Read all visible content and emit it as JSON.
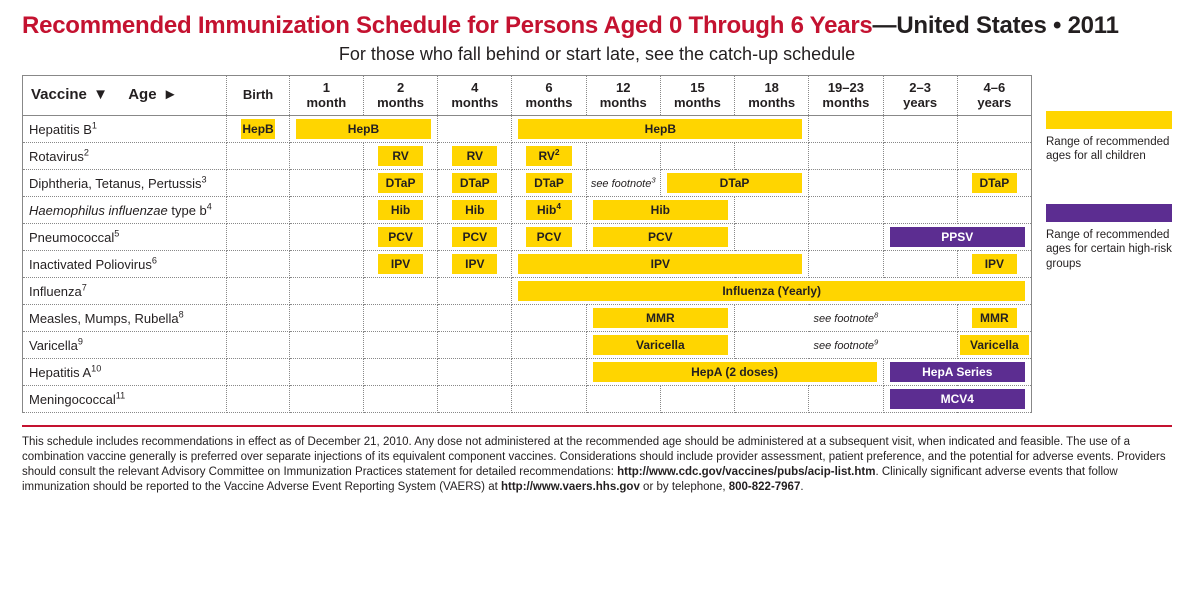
{
  "title": {
    "red": "Recommended Immunization Schedule for Persons Aged 0 Through 6 Years",
    "dash": "—",
    "black": "United States • 2011"
  },
  "subtitle": "For those who fall behind or start late, see the catch-up schedule",
  "tableHeader": {
    "vaccine": "Vaccine",
    "age": "Age",
    "arrowDown": "▼",
    "arrowRight": "►"
  },
  "ages": [
    "Birth",
    "1 month",
    "2 months",
    "4 months",
    "6 months",
    "12 months",
    "15 months",
    "18 months",
    "19–23 months",
    "2–3 years",
    "4–6 years"
  ],
  "vaccines": [
    {
      "name": "Hepatitis B",
      "sup": "1"
    },
    {
      "name": "Rotavirus",
      "sup": "2"
    },
    {
      "name": "Diphtheria, Tetanus, Pertussis",
      "sup": "3"
    },
    {
      "name": "Haemophilus influenzae",
      "suffix": " type b",
      "sup": "4",
      "italic": true
    },
    {
      "name": "Pneumococcal",
      "sup": "5"
    },
    {
      "name": "Inactivated Poliovirus",
      "sup": "6"
    },
    {
      "name": "Influenza",
      "sup": "7"
    },
    {
      "name": "Measles, Mumps, Rubella",
      "sup": "8"
    },
    {
      "name": "Varicella",
      "sup": "9"
    },
    {
      "name": "Hepatitis A",
      "sup": "10"
    },
    {
      "name": "Meningococcal",
      "sup": "11"
    }
  ],
  "doses": {
    "hepb1": "HepB",
    "hepb2": "HepB",
    "hepb3": "HepB",
    "rv": "RV",
    "rv3": "RV",
    "dtap": "DTaP",
    "dtapnote": "see footnote",
    "hib": "Hib",
    "hib4": "Hib",
    "hibspan": "Hib",
    "pcv": "PCV",
    "pcvspan": "PCV",
    "ppsv": "PPSV",
    "ipv": "IPV",
    "ipvspan": "IPV",
    "flu": "Influenza (Yearly)",
    "mmr": "MMR",
    "mmrnote": "see footnote",
    "var": "Varicella",
    "varnote": "see footnote",
    "hepa": "HepA (2 doses)",
    "hepaseries": "HepA Series",
    "mcv4": "MCV4"
  },
  "legend": {
    "yellow": "Range of recommended ages for all children",
    "purple": "Range of recommended ages for certain high-risk groups"
  },
  "footer": {
    "t1": "This schedule includes recommendations in effect as of December 21, 2010. Any dose not administered at the recommended age should be administered at a subsequent visit, when indicated and feasible. The use of a combination vaccine generally is preferred over separate injections of its equivalent component vaccines. Considerations should include provider assessment, patient preference, and the potential for adverse events. Providers should consult the relevant Advisory Committee on Immunization Practices statement for detailed recommendations: ",
    "url1": "http://www.cdc.gov/vaccines/pubs/acip-list.htm",
    "t2": ". Clinically significant adverse events that follow immunization should be reported to the Vaccine Adverse Event Reporting System (VAERS) at ",
    "url2": "http://www.vaers.hhs.gov",
    "t3": " or by telephone, ",
    "phone": "800-822-7967",
    "t4": "."
  },
  "colors": {
    "yellow": "#ffd500",
    "purple": "#5c2d91",
    "titleRed": "#c41230"
  }
}
